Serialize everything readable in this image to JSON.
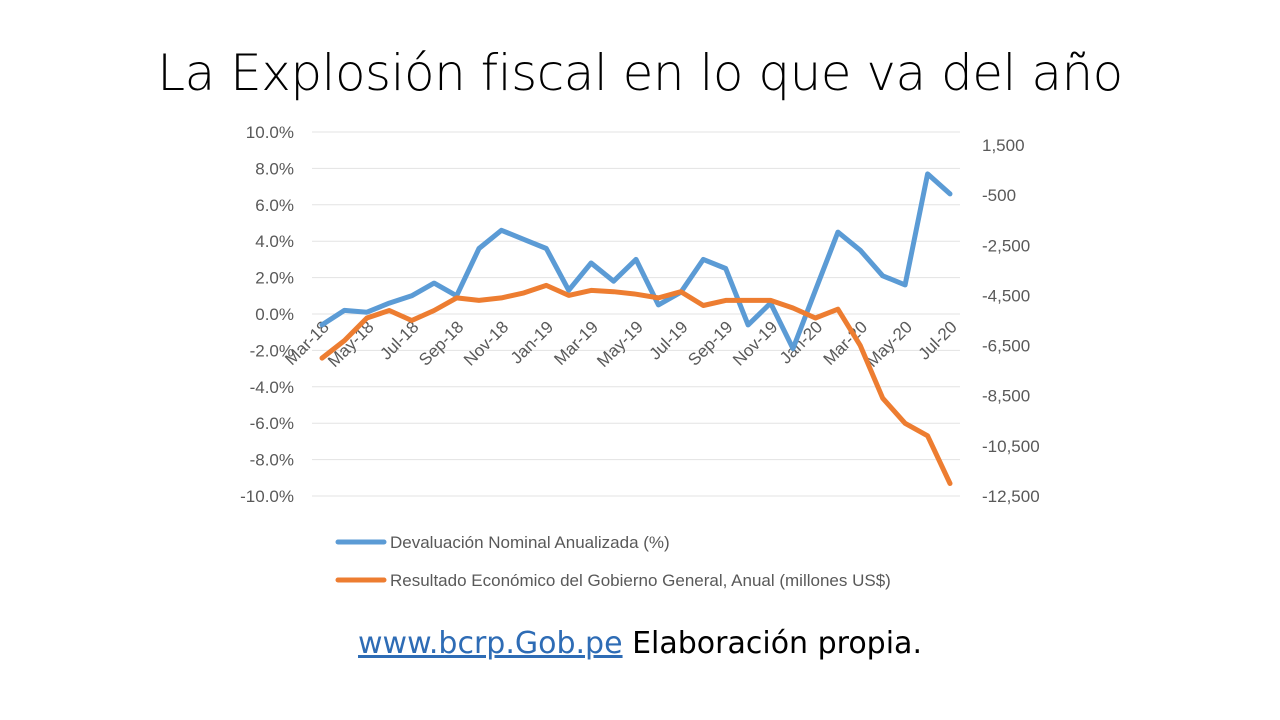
{
  "slide": {
    "title": "La Explosión fiscal en lo que va del año"
  },
  "chart_data": {
    "type": "line",
    "x": [
      "Mar-18",
      "Apr-18",
      "May-18",
      "Jun-18",
      "Jul-18",
      "Aug-18",
      "Sep-18",
      "Oct-18",
      "Nov-18",
      "Dec-18",
      "Jan-19",
      "Feb-19",
      "Mar-19",
      "Apr-19",
      "May-19",
      "Jun-19",
      "Jul-19",
      "Aug-19",
      "Sep-19",
      "Oct-19",
      "Nov-19",
      "Dec-19",
      "Jan-20",
      "Feb-20",
      "Mar-20",
      "Apr-20",
      "May-20",
      "Jun-20",
      "Jul-20"
    ],
    "x_tick_labels": [
      "Mar-18",
      "May-18",
      "Jul-18",
      "Sep-18",
      "Nov-18",
      "Jan-19",
      "Mar-19",
      "May-19",
      "Jul-19",
      "Sep-19",
      "Nov-19",
      "Jan-20",
      "Mar-20",
      "May-20",
      "Jul-20"
    ],
    "series": [
      {
        "name": "Devaluación Nominal Anualizada (%)",
        "axis": "left",
        "color": "#5b9bd5",
        "values": [
          -0.6,
          0.2,
          0.1,
          0.6,
          1.0,
          1.7,
          1.0,
          3.6,
          4.6,
          4.1,
          3.6,
          1.3,
          2.8,
          1.8,
          3.0,
          0.5,
          1.2,
          3.0,
          2.5,
          -0.6,
          0.6,
          -1.9,
          1.3,
          4.5,
          3.5,
          2.1,
          1.6,
          7.7,
          6.6
        ]
      },
      {
        "name": "Resultado Económico del Gobierno General, Anual (millones US$)",
        "axis": "right",
        "color": "#ed7d31",
        "values": [
          -7000,
          -6300,
          -5400,
          -5100,
          -5500,
          -5100,
          -4600,
          -4700,
          -4600,
          -4400,
          -4100,
          -4500,
          -4300,
          -4350,
          -4450,
          -4600,
          -4350,
          -4900,
          -4700,
          -4700,
          -4700,
          -5000,
          -5400,
          -5050,
          -6500,
          -8600,
          -9600,
          -10100,
          -12000
        ]
      }
    ],
    "y_left": {
      "ylim": [
        -10,
        10
      ],
      "ticks": [
        -10,
        -8,
        -6,
        -4,
        -2,
        0,
        2,
        4,
        6,
        8,
        10
      ],
      "tick_labels": [
        "-10.0%",
        "-8.0%",
        "-6.0%",
        "-4.0%",
        "-2.0%",
        "0.0%",
        "2.0%",
        "4.0%",
        "6.0%",
        "8.0%",
        "10.0%"
      ]
    },
    "y_right": {
      "ylim": [
        -12500,
        1500
      ],
      "ticks": [
        1500,
        -500,
        -2500,
        -4500,
        -6500,
        -8500,
        -10500,
        -12500
      ],
      "tick_labels": [
        "1,500",
        "-500",
        "-2,500",
        "-4,500",
        "-6,500",
        "-8,500",
        "-10,500",
        "-12,500"
      ]
    },
    "grid": true,
    "legend_placement": "bottom"
  },
  "footer": {
    "link_text": "www.bcrp.Gob.pe",
    "note": " Elaboración propia."
  }
}
